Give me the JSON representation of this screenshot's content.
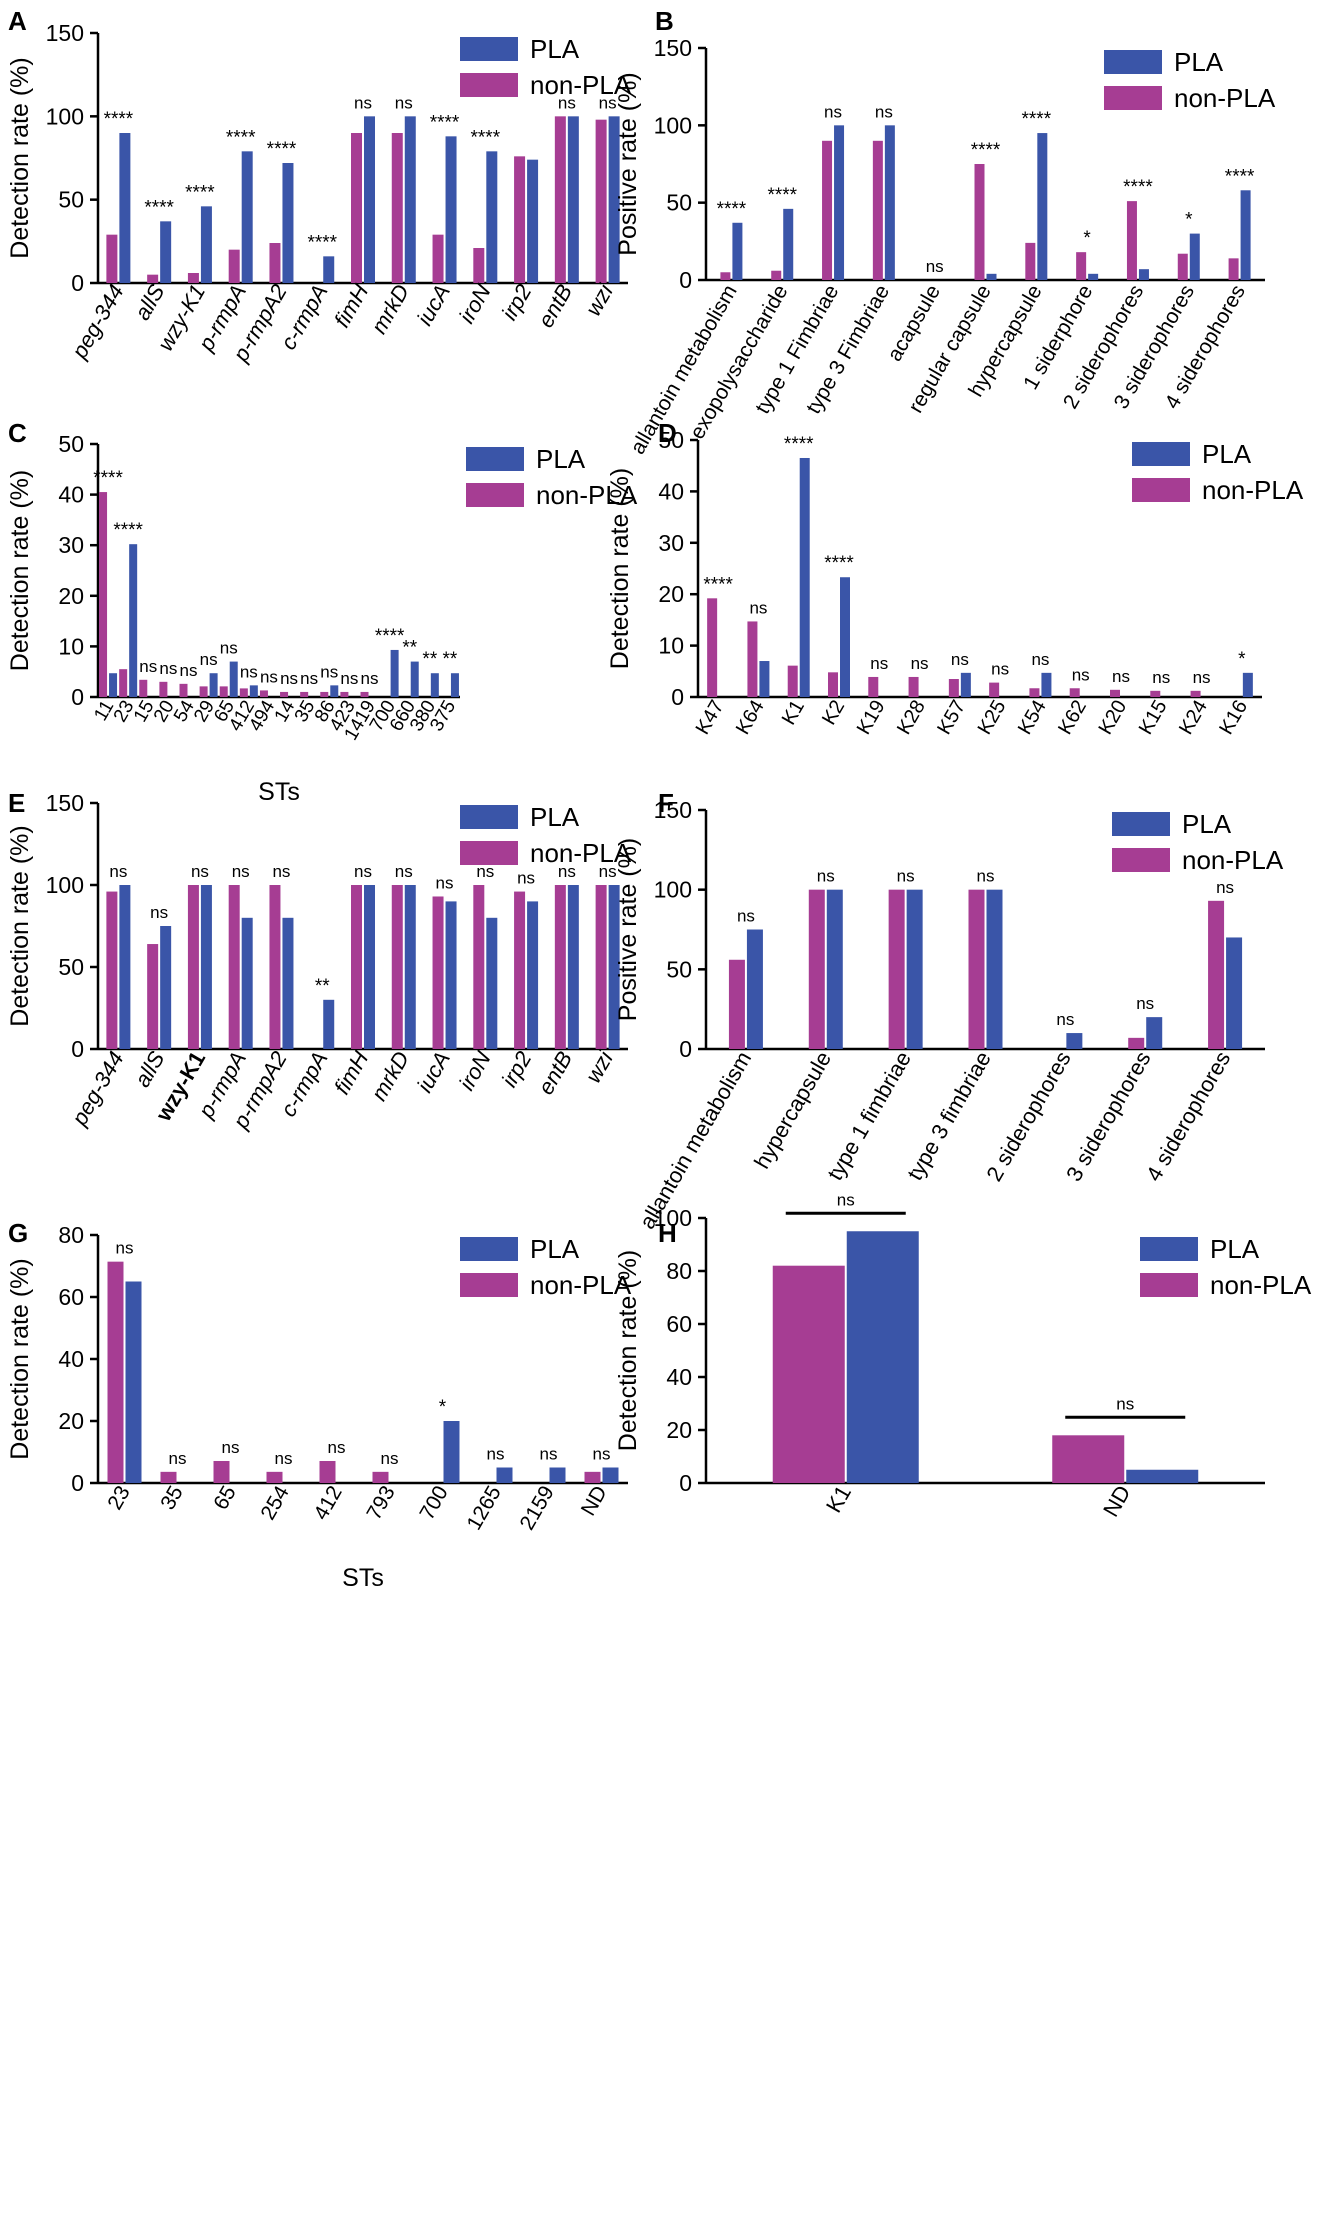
{
  "colors": {
    "pla": "#3a55a8",
    "non_pla": "#a63d93",
    "axis": "#000000"
  },
  "chart_data": [
    {
      "panel": "A",
      "type": "bar",
      "ylabel": "Detection rate (%)",
      "xlabel": "",
      "ylim": [
        0,
        150
      ],
      "yticks": [
        0,
        50,
        100,
        150
      ],
      "tick_style": "italic",
      "legend": [
        "PLA",
        "non-PLA"
      ],
      "legend_order": [
        "pla",
        "non"
      ],
      "categories": [
        "peg-344",
        "allS",
        "wzy-K1",
        "p-rmpA",
        "p-rmpA2",
        "c-rmpA",
        "fimH",
        "mrkD",
        "iucA",
        "iroN",
        "irp2",
        "entB",
        "wzi"
      ],
      "series": [
        {
          "name": "non-PLA",
          "key": "non",
          "values": [
            29,
            5,
            6,
            20,
            24,
            0,
            90,
            90,
            29,
            21,
            76,
            100,
            98
          ]
        },
        {
          "name": "PLA",
          "key": "pla",
          "values": [
            90,
            37,
            46,
            79,
            72,
            16,
            100,
            100,
            88,
            79,
            74,
            100,
            100
          ]
        }
      ],
      "annotations": [
        "****",
        "****",
        "****",
        "****",
        "****",
        "****",
        "ns",
        "ns",
        "****",
        "****",
        "",
        "ns",
        "ns"
      ]
    },
    {
      "panel": "B",
      "type": "bar",
      "ylabel": "Positive rate (%)",
      "xlabel": "",
      "ylim": [
        0,
        150
      ],
      "yticks": [
        0,
        50,
        100,
        150
      ],
      "tick_style": "normal",
      "legend": [
        "PLA",
        "non-PLA"
      ],
      "legend_order": [
        "pla",
        "non"
      ],
      "categories": [
        "allantoin metabolism",
        "exopolysaccharide",
        "type 1 Fimbriae",
        "type 3 Fimbriae",
        "acapsule",
        "regular capsule",
        "hypercapsule",
        "1 siderphore",
        "2 siderophores",
        "3 siderophores",
        "4 siderophores"
      ],
      "series": [
        {
          "name": "non-PLA",
          "key": "non",
          "values": [
            5,
            6,
            90,
            90,
            0,
            75,
            24,
            18,
            51,
            17,
            14
          ]
        },
        {
          "name": "PLA",
          "key": "pla",
          "values": [
            37,
            46,
            100,
            100,
            0,
            4,
            95,
            4,
            7,
            30,
            58
          ]
        }
      ],
      "annotations": [
        "****",
        "****",
        "ns",
        "ns",
        "ns",
        "****",
        "****",
        "*",
        "****",
        "*",
        "****"
      ]
    },
    {
      "panel": "C",
      "type": "bar",
      "ylabel": "Detection rate (%)",
      "xlabel": "STs",
      "ylim": [
        0,
        50
      ],
      "yticks": [
        0,
        10,
        20,
        30,
        40,
        50
      ],
      "tick_style": "normal",
      "legend": [
        "PLA",
        "non-PLA"
      ],
      "legend_order": [
        "pla",
        "non"
      ],
      "categories": [
        "11",
        "23",
        "15",
        "20",
        "54",
        "29",
        "65",
        "412",
        "494",
        "14",
        "35",
        "86",
        "423",
        "1419",
        "700",
        "660",
        "380",
        "375"
      ],
      "series": [
        {
          "name": "non-PLA",
          "key": "non",
          "values": [
            40.5,
            5.5,
            3.4,
            3.0,
            2.6,
            2.1,
            2.1,
            1.7,
            1.3,
            1.0,
            1.0,
            1.0,
            1.0,
            1.0,
            0,
            0,
            0,
            0
          ]
        },
        {
          "name": "PLA",
          "key": "pla",
          "values": [
            4.7,
            30.2,
            0,
            0,
            0,
            4.7,
            7.0,
            2.3,
            0,
            0,
            0,
            2.3,
            0,
            0,
            9.3,
            7.0,
            4.7,
            4.7
          ]
        }
      ],
      "annotations": [
        "****",
        "****",
        "ns",
        "ns",
        "ns",
        "ns",
        "ns",
        "ns",
        "ns",
        "ns",
        "ns",
        "ns",
        "ns",
        "ns",
        "****",
        "**",
        "**",
        "**"
      ]
    },
    {
      "panel": "D",
      "type": "bar",
      "ylabel": "Detection rate (%)",
      "xlabel": "",
      "ylim": [
        0,
        50
      ],
      "yticks": [
        0,
        10,
        20,
        30,
        40,
        50
      ],
      "tick_style": "normal",
      "legend": [
        "PLA",
        "non-PLA"
      ],
      "legend_order": [
        "pla",
        "non"
      ],
      "categories": [
        "K47",
        "K64",
        "K1",
        "K2",
        "K19",
        "K28",
        "K57",
        "K25",
        "K54",
        "K62",
        "K20",
        "K15",
        "K24",
        "K16"
      ],
      "series": [
        {
          "name": "non-PLA",
          "key": "non",
          "values": [
            19.2,
            14.7,
            6.1,
            4.8,
            3.9,
            3.9,
            3.5,
            2.8,
            1.7,
            1.7,
            1.4,
            1.2,
            1.2,
            0
          ]
        },
        {
          "name": "PLA",
          "key": "pla",
          "values": [
            0,
            7.0,
            46.5,
            23.3,
            0,
            0,
            4.7,
            0,
            4.7,
            0,
            0,
            0,
            0,
            4.7
          ]
        }
      ],
      "annotations": [
        "****",
        "ns",
        "****",
        "****",
        "ns",
        "ns",
        "ns",
        "ns",
        "ns",
        "ns",
        "ns",
        "ns",
        "ns",
        "*"
      ]
    },
    {
      "panel": "E",
      "type": "bar",
      "ylabel": "Detection rate (%)",
      "xlabel": "",
      "ylim": [
        0,
        150
      ],
      "yticks": [
        0,
        50,
        100,
        150
      ],
      "tick_style": "italic",
      "tick_bold_index": 2,
      "legend": [
        "PLA",
        "non-PLA"
      ],
      "legend_order": [
        "pla",
        "non"
      ],
      "categories": [
        "peg-344",
        "allS",
        "wzy-K1",
        "p-rmpA",
        "p-rmpA2",
        "c-rmpA",
        "fimH",
        "mrkD",
        "iucA",
        "iroN",
        "irp2",
        "entB",
        "wzi"
      ],
      "series": [
        {
          "name": "non-PLA",
          "key": "non",
          "values": [
            96,
            64,
            100,
            100,
            100,
            0,
            100,
            100,
            93,
            100,
            96,
            100,
            100
          ]
        },
        {
          "name": "PLA",
          "key": "pla",
          "values": [
            100,
            75,
            100,
            80,
            80,
            30,
            100,
            100,
            90,
            80,
            90,
            100,
            100
          ]
        }
      ],
      "annotations": [
        "ns",
        "ns",
        "ns",
        "ns",
        "ns",
        "**",
        "ns",
        "ns",
        "ns",
        "ns",
        "ns",
        "ns",
        "ns"
      ]
    },
    {
      "panel": "F",
      "type": "bar",
      "ylabel": "Positive rate (%)",
      "xlabel": "",
      "ylim": [
        0,
        150
      ],
      "yticks": [
        0,
        50,
        100,
        150
      ],
      "tick_style": "normal",
      "legend": [
        "PLA",
        "non-PLA"
      ],
      "legend_order": [
        "pla",
        "non"
      ],
      "categories": [
        "allantoin metabolism",
        "hypercapsule",
        "type 1 fimbriae",
        "type 3 fimbriae",
        "2 siderophores",
        "3 siderophores",
        "4 siderophores"
      ],
      "series": [
        {
          "name": "non-PLA",
          "key": "non",
          "values": [
            56,
            100,
            100,
            100,
            0,
            7,
            93
          ]
        },
        {
          "name": "PLA",
          "key": "pla",
          "values": [
            75,
            100,
            100,
            100,
            10,
            20,
            70
          ]
        }
      ],
      "annotations": [
        "ns",
        "ns",
        "ns",
        "ns",
        "ns",
        "ns",
        "ns"
      ]
    },
    {
      "panel": "G",
      "type": "bar",
      "ylabel": "Detection rate (%)",
      "xlabel": "STs",
      "ylim": [
        0,
        80
      ],
      "yticks": [
        0,
        20,
        40,
        60,
        80
      ],
      "tick_style": "normal",
      "legend": [
        "PLA",
        "non-PLA"
      ],
      "legend_order": [
        "pla",
        "non"
      ],
      "categories": [
        "23",
        "35",
        "65",
        "254",
        "412",
        "793",
        "700",
        "1265",
        "2159",
        "ND"
      ],
      "series": [
        {
          "name": "non-PLA",
          "key": "non",
          "values": [
            71.4,
            3.6,
            7.1,
            3.6,
            7.1,
            3.6,
            0,
            0,
            0,
            3.6
          ]
        },
        {
          "name": "PLA",
          "key": "pla",
          "values": [
            65,
            0,
            0,
            0,
            0,
            0,
            20,
            5,
            5,
            5
          ]
        }
      ],
      "annotations": [
        "ns",
        "ns",
        "ns",
        "ns",
        "ns",
        "ns",
        "*",
        "ns",
        "ns",
        "ns"
      ]
    },
    {
      "panel": "H",
      "type": "bar",
      "ylabel": "Detection rate (%)",
      "xlabel": "",
      "ylim": [
        0,
        100
      ],
      "yticks": [
        0,
        20,
        40,
        60,
        80,
        100
      ],
      "tick_style": "normal",
      "legend": [
        "PLA",
        "non-PLA"
      ],
      "legend_order": [
        "pla",
        "non"
      ],
      "categories": [
        "K1",
        "ND"
      ],
      "series": [
        {
          "name": "non-PLA",
          "key": "non",
          "values": [
            82,
            18
          ]
        },
        {
          "name": "PLA",
          "key": "pla",
          "values": [
            95,
            5
          ]
        }
      ],
      "annotations": [
        "ns",
        "ns"
      ]
    }
  ]
}
